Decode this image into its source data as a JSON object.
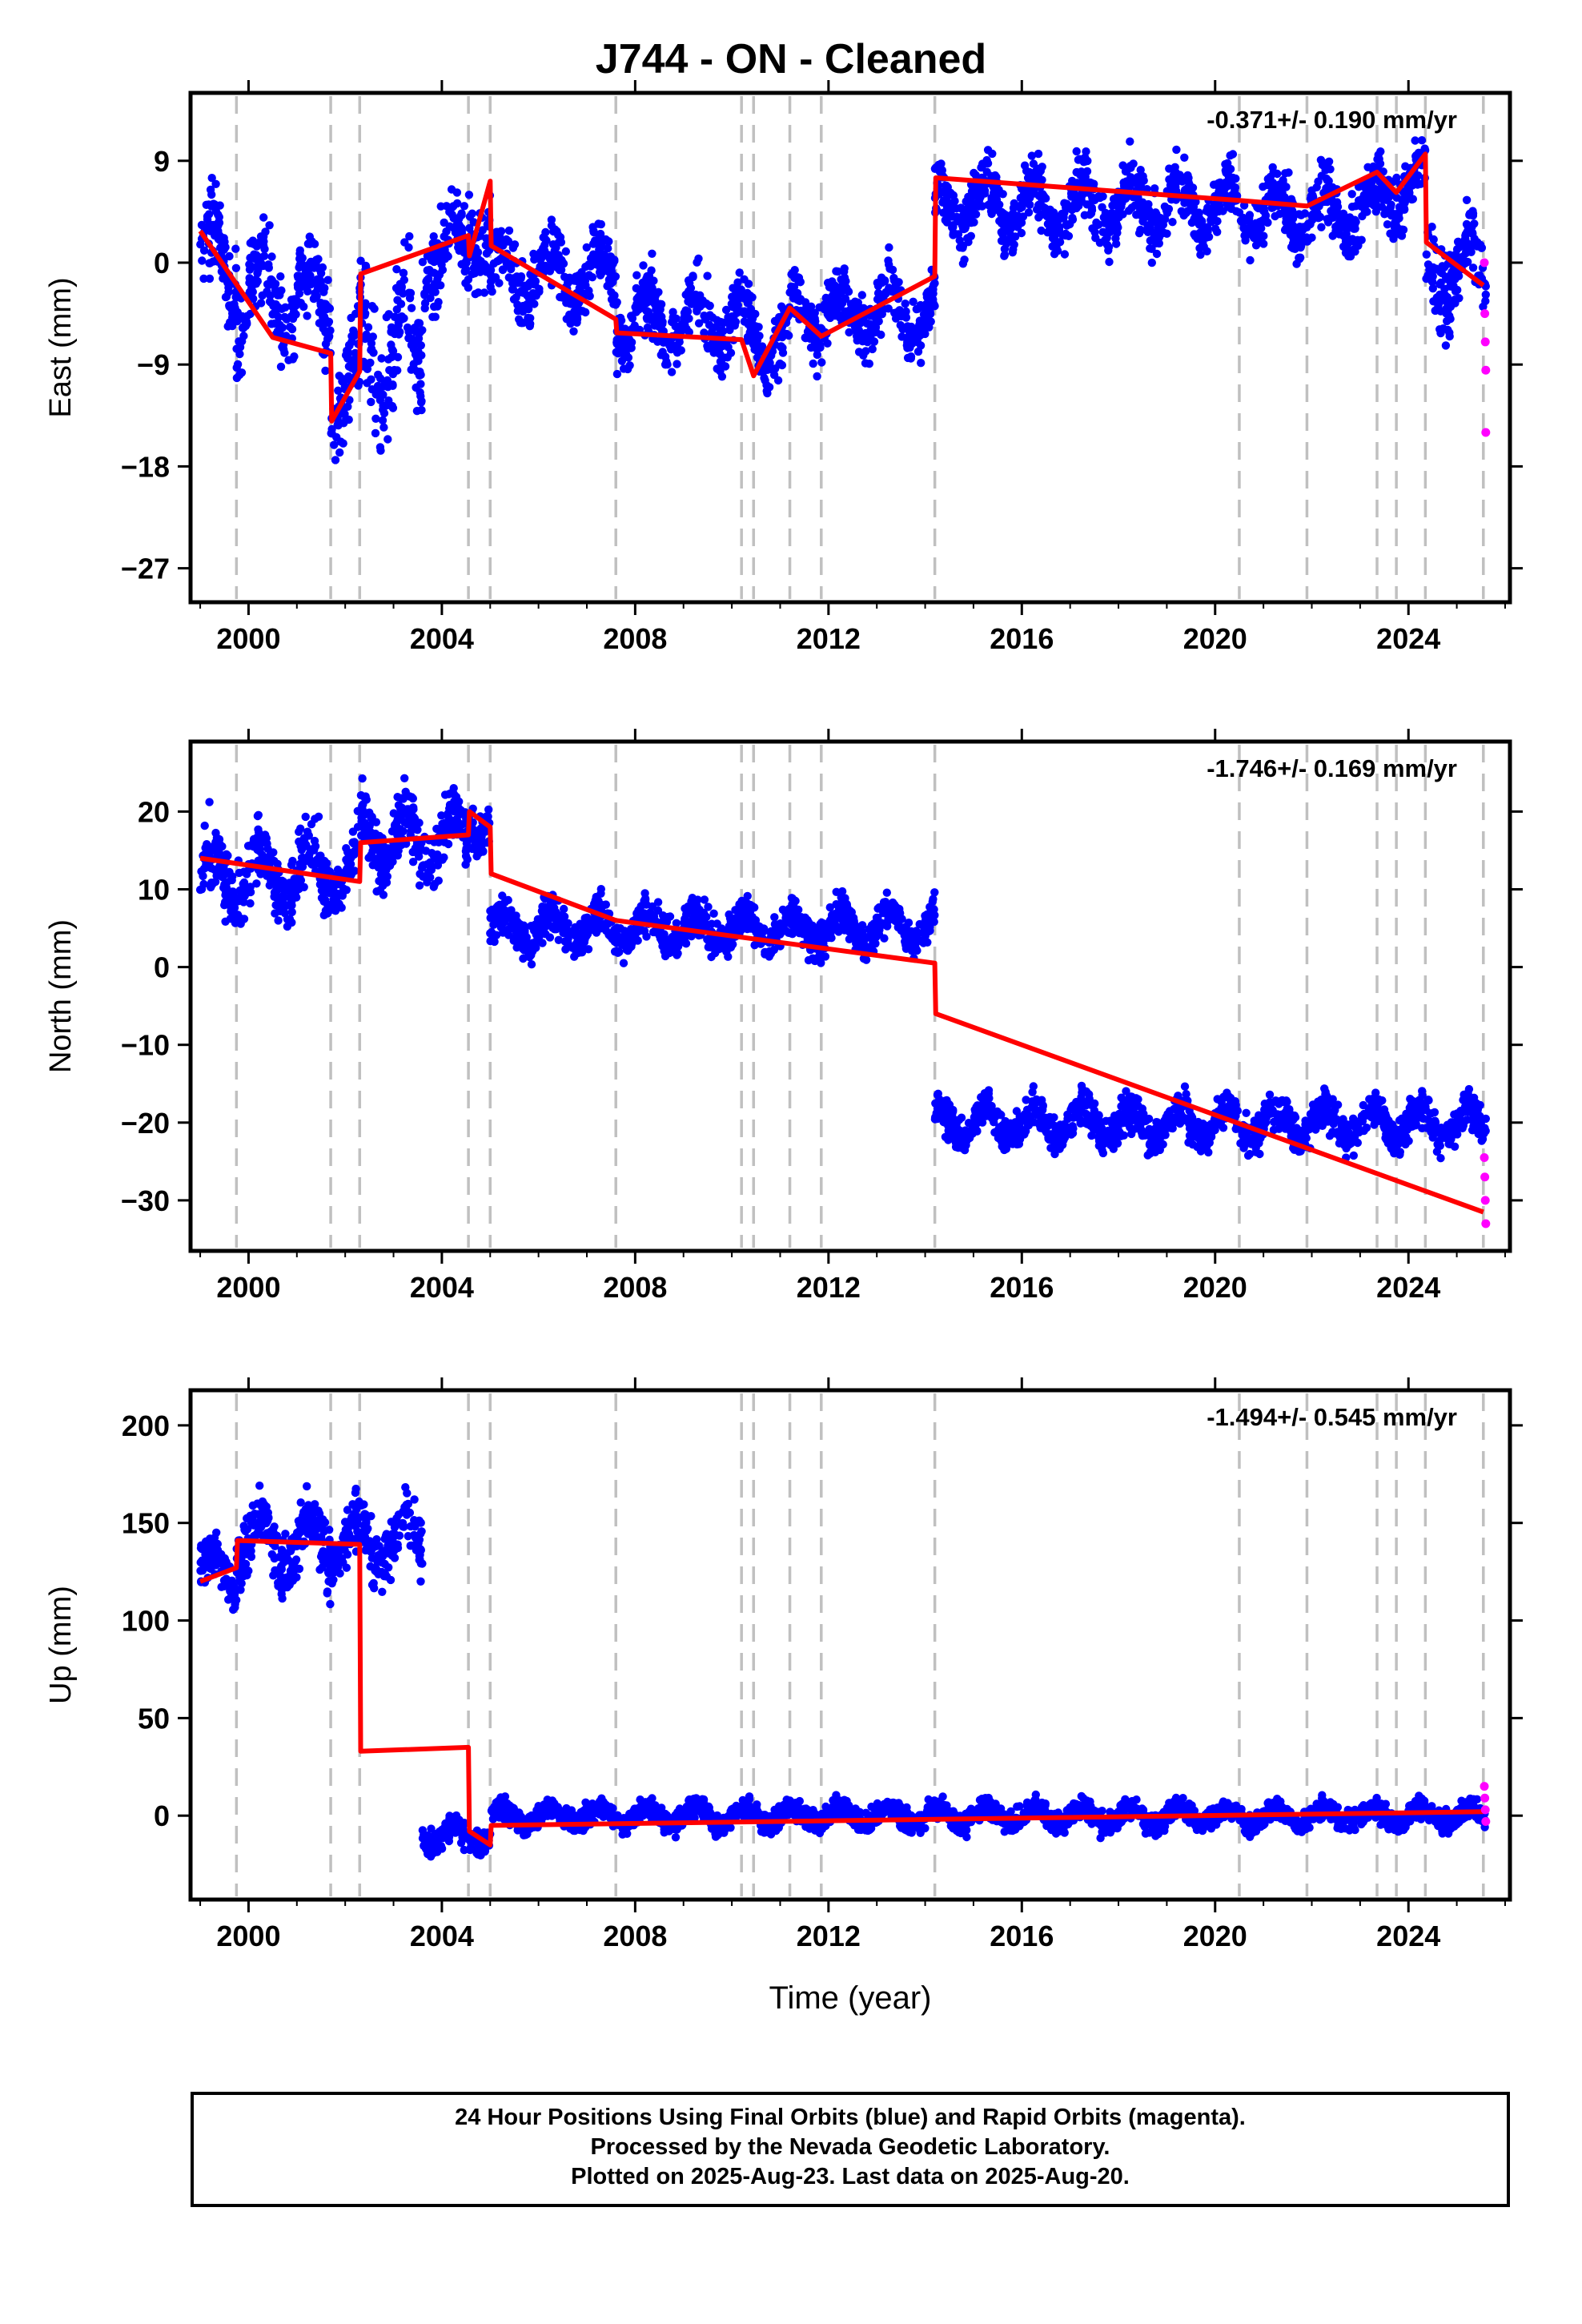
{
  "title": "J744  - ON - Cleaned",
  "caption": {
    "line1": "24 Hour Positions Using Final Orbits (blue) and Rapid Orbits (magenta).",
    "line2": "Processed by the Nevada Geodetic Laboratory.",
    "line3": "Plotted on 2025-Aug-23. Last data on 2025-Aug-20."
  },
  "colors": {
    "final": "#0000ff",
    "rapid": "#ff00ff",
    "model": "#ff0000",
    "breaks": "#c0c0c0"
  },
  "chart_data": [
    {
      "type": "scatter",
      "ylabel": "East (mm)",
      "xlabel": "",
      "rate": "-0.371+/- 0.190 mm/yr",
      "xlim": [
        1998.8,
        2026.1
      ],
      "ylim": [
        -30,
        15
      ],
      "x_ticks": [
        2000,
        2004,
        2008,
        2012,
        2016,
        2020,
        2024
      ],
      "y_ticks": [
        -27,
        -18,
        -9,
        0,
        9
      ],
      "breaks": [
        1999.75,
        2001.7,
        2002.3,
        2004.55,
        2005.0,
        2007.6,
        2010.2,
        2010.45,
        2011.2,
        2011.85,
        2014.2,
        2020.5,
        2021.9,
        2023.35,
        2023.75,
        2024.35,
        2025.55
      ],
      "model": [
        [
          1999.0,
          2.8
        ],
        [
          2000.5,
          -6.6
        ],
        [
          2001.7,
          -8.0
        ],
        [
          2001.72,
          -14.0
        ],
        [
          2002.3,
          -9.6
        ],
        [
          2002.32,
          -1.0
        ],
        [
          2004.55,
          2.4
        ],
        [
          2004.57,
          0.6
        ],
        [
          2005.0,
          7.2
        ],
        [
          2005.02,
          1.5
        ],
        [
          2007.6,
          -5.0
        ],
        [
          2007.62,
          -6.2
        ],
        [
          2010.2,
          -6.8
        ],
        [
          2010.45,
          -10.0
        ],
        [
          2011.2,
          -4.0
        ],
        [
          2011.85,
          -6.5
        ],
        [
          2014.2,
          -1.2
        ],
        [
          2014.22,
          7.5
        ],
        [
          2020.5,
          5.5
        ],
        [
          2021.9,
          5.0
        ],
        [
          2023.35,
          8.0
        ],
        [
          2023.75,
          6.2
        ],
        [
          2024.35,
          9.6
        ],
        [
          2024.37,
          1.8
        ],
        [
          2025.55,
          -2.0
        ]
      ],
      "scatter_bands": [
        [
          1999.0,
          1999.75,
          0.0,
          3.5
        ],
        [
          1999.75,
          2001.7,
          -3.0,
          3.5
        ],
        [
          2001.7,
          2002.3,
          -11.0,
          3.8
        ],
        [
          2002.3,
          2003.6,
          -8.0,
          5.0
        ],
        [
          2003.6,
          2004.55,
          1.0,
          3.2
        ],
        [
          2004.55,
          2005.0,
          3.0,
          3.0
        ],
        [
          2005.0,
          2007.6,
          -1.0,
          2.6
        ],
        [
          2007.6,
          2010.2,
          -5.0,
          2.5
        ],
        [
          2010.2,
          2011.2,
          -6.5,
          2.6
        ],
        [
          2011.2,
          2014.2,
          -4.5,
          2.4
        ],
        [
          2014.2,
          2020.5,
          5.0,
          2.4
        ],
        [
          2020.5,
          2023.35,
          4.5,
          2.3
        ],
        [
          2023.35,
          2024.35,
          6.5,
          2.5
        ],
        [
          2024.35,
          2025.6,
          -0.5,
          3.2
        ]
      ],
      "rapid_points": [
        [
          2025.57,
          0.0
        ],
        [
          2025.58,
          -4.5
        ],
        [
          2025.59,
          -7.0
        ],
        [
          2025.6,
          -9.5
        ],
        [
          2025.6,
          -15.0
        ]
      ]
    },
    {
      "type": "scatter",
      "ylabel": "North (mm)",
      "xlabel": "",
      "rate": "-1.746+/- 0.169 mm/yr",
      "xlim": [
        1998.8,
        2026.1
      ],
      "ylim": [
        -36.5,
        29
      ],
      "x_ticks": [
        2000,
        2004,
        2008,
        2012,
        2016,
        2020,
        2024
      ],
      "y_ticks": [
        -30,
        -20,
        -10,
        0,
        10,
        20
      ],
      "breaks": [
        1999.75,
        2001.7,
        2002.3,
        2004.55,
        2005.0,
        2007.6,
        2010.2,
        2010.45,
        2011.2,
        2011.85,
        2014.2,
        2020.5,
        2021.9,
        2023.35,
        2023.75,
        2024.35,
        2025.55
      ],
      "model": [
        [
          1999.0,
          14.0
        ],
        [
          2002.3,
          11.0
        ],
        [
          2002.32,
          16.0
        ],
        [
          2004.55,
          17.0
        ],
        [
          2004.57,
          20.0
        ],
        [
          2005.0,
          18.0
        ],
        [
          2005.02,
          12.0
        ],
        [
          2007.6,
          6.0
        ],
        [
          2014.2,
          0.5
        ],
        [
          2014.22,
          -6.0
        ],
        [
          2025.55,
          -31.5
        ]
      ],
      "scatter_bands": [
        [
          1999.0,
          2002.3,
          12.0,
          3.8
        ],
        [
          2002.3,
          2004.55,
          16.5,
          3.8
        ],
        [
          2004.55,
          2005.0,
          19.0,
          3.0
        ],
        [
          2005.0,
          2014.2,
          5.0,
          2.3
        ],
        [
          2014.2,
          2025.6,
          -20.0,
          2.2
        ]
      ],
      "rapid_points": [
        [
          2025.57,
          -24.5
        ],
        [
          2025.58,
          -27.0
        ],
        [
          2025.59,
          -30.0
        ],
        [
          2025.6,
          -33.0
        ]
      ]
    },
    {
      "type": "scatter",
      "ylabel": "Up (mm)",
      "xlabel": "Time (year)",
      "rate": "-1.494+/- 0.545 mm/yr",
      "xlim": [
        1998.8,
        2026.1
      ],
      "ylim": [
        -43,
        218
      ],
      "x_ticks": [
        2000,
        2004,
        2008,
        2012,
        2016,
        2020,
        2024
      ],
      "y_ticks": [
        0,
        50,
        100,
        150,
        200
      ],
      "breaks": [
        1999.75,
        2001.7,
        2002.3,
        2004.55,
        2005.0,
        2007.6,
        2010.2,
        2010.45,
        2011.2,
        2011.85,
        2014.2,
        2020.5,
        2021.9,
        2023.35,
        2023.75,
        2024.35,
        2025.55
      ],
      "model": [
        [
          1999.0,
          120.0
        ],
        [
          1999.75,
          127.0
        ],
        [
          1999.77,
          141.0
        ],
        [
          2002.3,
          139.0
        ],
        [
          2002.32,
          33.0
        ],
        [
          2004.55,
          35.0
        ],
        [
          2004.57,
          -8.0
        ],
        [
          2005.0,
          -15.0
        ],
        [
          2005.02,
          -5.0
        ],
        [
          2025.55,
          2.0
        ]
      ],
      "scatter_bands": [
        [
          1999.0,
          1999.75,
          125.0,
          12.0
        ],
        [
          1999.75,
          2003.6,
          140.0,
          14.0
        ],
        [
          2003.6,
          2005.0,
          -10.0,
          6.0
        ],
        [
          2005.0,
          2025.6,
          0.0,
          5.0
        ]
      ],
      "rapid_points": [
        [
          2025.57,
          15.0
        ],
        [
          2025.58,
          9.0
        ],
        [
          2025.59,
          3.0
        ],
        [
          2025.6,
          -3.0
        ]
      ]
    }
  ]
}
